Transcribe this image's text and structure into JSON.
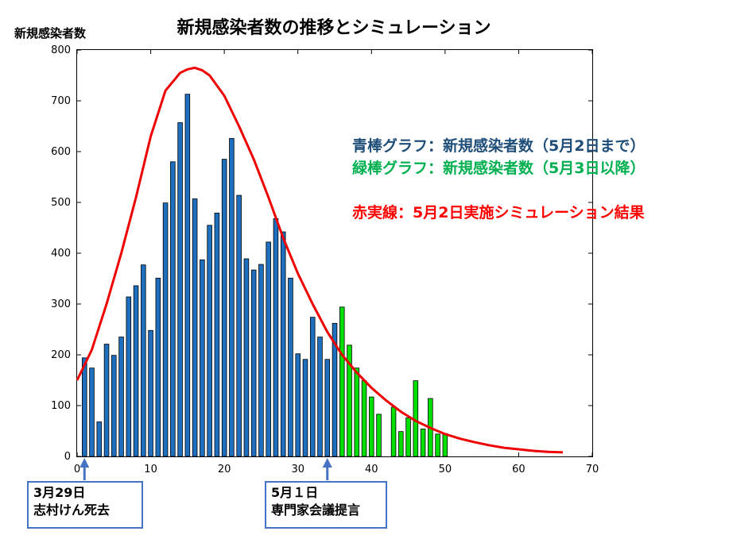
{
  "title": "新規感染者数の推移とシミュレーション",
  "ylabel": "新規感染者数",
  "legend": {
    "blue": "青棒グラフ：新規感染者数（5月2日まで）",
    "green": "緑棒グラフ：新規感染者数（5月3日以降）",
    "red": "赤実線：5月2日実施シミュレーション結果"
  },
  "annotations": [
    {
      "line1": "3月29日",
      "line2": "志村けん死去"
    },
    {
      "line1": "5月１日",
      "line2": "専門家会議提言"
    }
  ],
  "chart_data": {
    "type": "bar",
    "xlim": [
      0,
      70
    ],
    "ylim": [
      0,
      800
    ],
    "xticks": [
      0,
      10,
      20,
      30,
      40,
      50,
      60,
      70
    ],
    "yticks": [
      0,
      100,
      200,
      300,
      400,
      500,
      600,
      700,
      800
    ],
    "series": [
      {
        "color": "#1f6fbf",
        "x": [
          1,
          2,
          3,
          4,
          5,
          6,
          7,
          8,
          9,
          10,
          11,
          12,
          13,
          14,
          15,
          16,
          17,
          18,
          19,
          20,
          21,
          22,
          23,
          24,
          25,
          26,
          27,
          28,
          29,
          30,
          31,
          32,
          33,
          34,
          35
        ],
        "values": [
          194,
          174,
          68,
          221,
          199,
          235,
          314,
          336,
          377,
          248,
          351,
          499,
          580,
          657,
          713,
          507,
          387,
          455,
          479,
          585,
          626,
          514,
          389,
          367,
          378,
          422,
          468,
          442,
          351,
          202,
          191,
          274,
          235,
          191,
          262
        ]
      },
      {
        "color": "#00e000",
        "x": [
          36,
          37,
          38,
          39,
          40,
          41,
          43,
          44,
          45,
          46,
          47,
          48,
          49,
          50
        ],
        "values": [
          294,
          219,
          174,
          149,
          117,
          83,
          97,
          49,
          76,
          149,
          54,
          114,
          44,
          45
        ]
      },
      {
        "color": "#ee0000",
        "type": "line",
        "x": [
          0,
          2,
          4,
          6,
          8,
          10,
          12,
          14,
          15,
          16,
          17,
          18,
          20,
          22,
          24,
          26,
          28,
          30,
          32,
          34,
          36,
          38,
          40,
          42,
          44,
          46,
          48,
          50,
          52,
          54,
          56,
          58,
          60,
          62,
          64,
          66
        ],
        "values": [
          150,
          210,
          300,
          400,
          510,
          630,
          720,
          755,
          762,
          765,
          760,
          750,
          710,
          650,
          585,
          510,
          430,
          360,
          300,
          245,
          200,
          165,
          135,
          110,
          88,
          70,
          56,
          44,
          35,
          28,
          22,
          17,
          14,
          11,
          9,
          8
        ]
      }
    ]
  }
}
